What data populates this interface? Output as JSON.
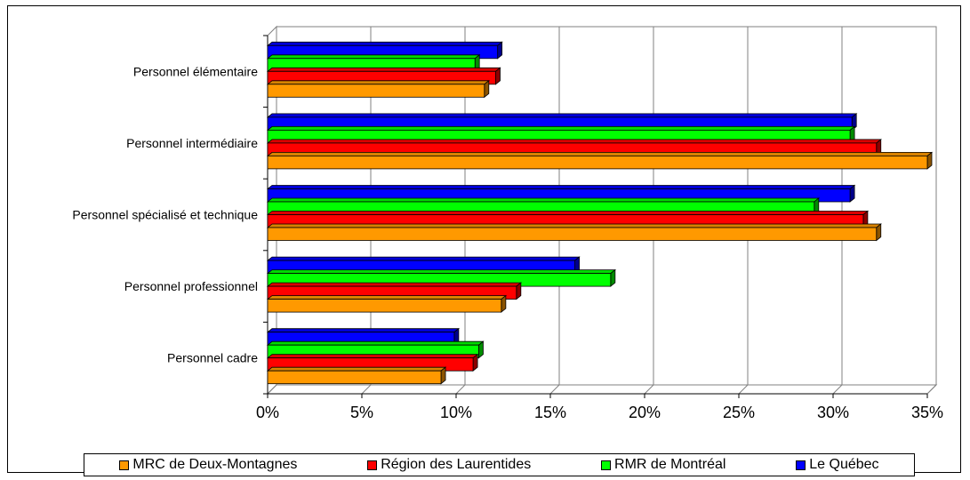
{
  "chart_data": {
    "type": "bar",
    "orientation": "horizontal",
    "categories": [
      "Personnel élémentaire",
      "Personnel intermédiaire",
      "Personnel spécialisé et technique",
      "Personnel professionnel",
      "Personnel cadre"
    ],
    "series": [
      {
        "name": "MRC de Deux-Montagnes",
        "color": "#FF9900",
        "values": [
          11.5,
          35.0,
          32.3,
          12.4,
          9.2
        ]
      },
      {
        "name": "Région des Laurentides",
        "color": "#FF0000",
        "values": [
          12.1,
          32.3,
          31.6,
          13.2,
          10.9
        ]
      },
      {
        "name": "RMR de Montréal",
        "color": "#00FF00",
        "values": [
          11.0,
          30.9,
          29.0,
          18.2,
          11.2
        ]
      },
      {
        "name": "Le Québec",
        "color": "#0000FF",
        "values": [
          12.2,
          31.0,
          30.9,
          16.3,
          9.9
        ]
      }
    ],
    "xlim": [
      0,
      35
    ],
    "xticks": [
      "0%",
      "5%",
      "10%",
      "15%",
      "20%",
      "25%",
      "30%",
      "35%"
    ],
    "grid": true,
    "legend_position": "bottom",
    "style": "3d"
  }
}
